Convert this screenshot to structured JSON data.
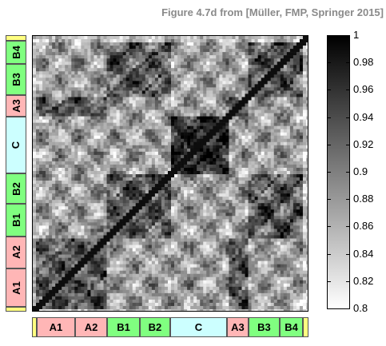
{
  "title": "Figure 4.7d from [Müller, FMP, Springer 2015]",
  "chart_data": {
    "type": "heatmap",
    "description_values": "self-similarity matrix",
    "colorbar": {
      "min": 0.8,
      "max": 1,
      "ticks": [
        "1",
        "0.98",
        "0.96",
        "0.94",
        "0.92",
        "0.9",
        "0.88",
        "0.86",
        "0.84",
        "0.82",
        "0.8"
      ],
      "colormap": "gray-reversed"
    },
    "segments": [
      {
        "label": "",
        "start": 0.0,
        "end": 0.017,
        "color": "#ffff80"
      },
      {
        "label": "A1",
        "start": 0.017,
        "end": 0.156,
        "color": "#ffb6b6"
      },
      {
        "label": "A2",
        "start": 0.156,
        "end": 0.272,
        "color": "#ffb6b6"
      },
      {
        "label": "B1",
        "start": 0.272,
        "end": 0.39,
        "color": "#80ff80"
      },
      {
        "label": "B2",
        "start": 0.39,
        "end": 0.5,
        "color": "#80ff80"
      },
      {
        "label": "C",
        "start": 0.5,
        "end": 0.705,
        "color": "#ccffff"
      },
      {
        "label": "A3",
        "start": 0.705,
        "end": 0.783,
        "color": "#ffb6b6"
      },
      {
        "label": "B3",
        "start": 0.783,
        "end": 0.896,
        "color": "#80ff80"
      },
      {
        "label": "B4",
        "start": 0.896,
        "end": 0.98,
        "color": "#80ff80"
      },
      {
        "label": "",
        "start": 0.98,
        "end": 1.0,
        "color": "#ffff80"
      }
    ]
  }
}
